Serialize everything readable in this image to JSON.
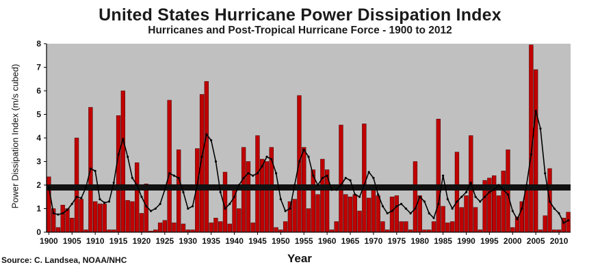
{
  "chart_data": {
    "type": "bar",
    "title": "United States Hurricane Power Dissipation Index",
    "subtitle": "Hurricanes and Post-Tropical Hurricane Force - 1900 to 2012",
    "ylabel": "Power Dissipation Index (m/s cubed)",
    "xlabel": "Year",
    "source": "Source: C. Landsea, NOAA/NHC",
    "ylim": [
      0,
      8
    ],
    "yticks": [
      "0",
      "1",
      "2",
      "3",
      "4",
      "5",
      "6",
      "7",
      "8"
    ],
    "xticks": [
      "1900",
      "1905",
      "1910",
      "1915",
      "1920",
      "1925",
      "1930",
      "1935",
      "1940",
      "1945",
      "1950",
      "1955",
      "1960",
      "1965",
      "1970",
      "1975",
      "1980",
      "1985",
      "1990",
      "1995",
      "2000",
      "2005",
      "2010"
    ],
    "xtick_years": [
      1900,
      1905,
      1910,
      1915,
      1920,
      1925,
      1930,
      1935,
      1940,
      1945,
      1950,
      1955,
      1960,
      1965,
      1970,
      1975,
      1980,
      1985,
      1990,
      1995,
      2000,
      2005,
      2010
    ],
    "grid": false,
    "colors": {
      "bars": "#c00000",
      "bar_edge": "#3a0000",
      "plot_background": "#c0c0c0",
      "smoothed_line": "#000000",
      "mean_line": "#111111"
    },
    "mean_value": 1.9,
    "years": [
      1900,
      1901,
      1902,
      1903,
      1904,
      1905,
      1906,
      1907,
      1908,
      1909,
      1910,
      1911,
      1912,
      1913,
      1914,
      1915,
      1916,
      1917,
      1918,
      1919,
      1920,
      1921,
      1922,
      1923,
      1924,
      1925,
      1926,
      1927,
      1928,
      1929,
      1930,
      1931,
      1932,
      1933,
      1934,
      1935,
      1936,
      1937,
      1938,
      1939,
      1940,
      1941,
      1942,
      1943,
      1944,
      1945,
      1946,
      1947,
      1948,
      1949,
      1950,
      1951,
      1952,
      1953,
      1954,
      1955,
      1956,
      1957,
      1958,
      1959,
      1960,
      1961,
      1962,
      1963,
      1964,
      1965,
      1966,
      1967,
      1968,
      1969,
      1970,
      1971,
      1972,
      1973,
      1974,
      1975,
      1976,
      1977,
      1978,
      1979,
      1980,
      1981,
      1982,
      1983,
      1984,
      1985,
      1986,
      1987,
      1988,
      1989,
      1990,
      1991,
      1992,
      1993,
      1994,
      1995,
      1996,
      1997,
      1998,
      1999,
      2000,
      2001,
      2002,
      2003,
      2004,
      2005,
      2006,
      2007,
      2008,
      2009,
      2010,
      2011,
      2012
    ],
    "series": [
      {
        "name": "",
        "values": [
          2.35,
          1.0,
          0.2,
          1.15,
          1.0,
          0.6,
          4.0,
          1.4,
          0.1,
          5.3,
          1.3,
          1.2,
          1.2,
          0.1,
          0.1,
          4.95,
          6.0,
          1.35,
          1.3,
          2.95,
          0.8,
          2.05,
          0.05,
          0.1,
          0.4,
          0.5,
          5.6,
          0.4,
          3.5,
          0.35,
          0.1,
          0.1,
          3.55,
          5.85,
          6.4,
          0.4,
          0.6,
          0.45,
          2.55,
          0.35,
          1.8,
          1.0,
          3.6,
          3.0,
          0.4,
          4.1,
          3.1,
          3.0,
          3.6,
          0.2,
          0.1,
          0.45,
          1.3,
          1.4,
          5.8,
          3.6,
          1.0,
          2.65,
          1.6,
          3.1,
          2.65,
          0.1,
          0.45,
          4.55,
          1.6,
          1.5,
          1.6,
          0.9,
          4.6,
          1.45,
          2.0,
          1.55,
          0.45,
          0.1,
          1.5,
          1.55,
          0.45,
          0.45,
          0.1,
          3.0,
          1.55,
          0.1,
          0.1,
          0.45,
          4.8,
          1.1,
          0.4,
          0.45,
          3.4,
          1.05,
          1.55,
          4.1,
          1.05,
          0.1,
          2.2,
          2.3,
          2.4,
          1.55,
          2.6,
          3.5,
          0.2,
          0.65,
          1.3,
          1.8,
          7.95,
          6.9,
          0.1,
          0.7,
          2.7,
          0.1,
          0.1,
          0.6,
          0.85
        ]
      },
      {
        "name": "",
        "values": [
          1.9,
          0.8,
          0.75,
          0.8,
          0.95,
          1.2,
          1.5,
          1.45,
          1.9,
          2.7,
          2.6,
          1.4,
          1.25,
          1.3,
          2.1,
          3.3,
          3.95,
          3.2,
          2.3,
          2.0,
          1.5,
          1.1,
          0.9,
          1.0,
          1.2,
          1.8,
          2.5,
          2.4,
          2.3,
          1.7,
          1.0,
          1.1,
          2.0,
          3.2,
          4.15,
          3.9,
          3.0,
          1.7,
          1.0,
          1.2,
          1.5,
          2.0,
          2.3,
          2.5,
          2.4,
          2.5,
          2.8,
          3.2,
          3.1,
          2.5,
          1.4,
          0.9,
          1.0,
          2.0,
          3.0,
          3.5,
          3.2,
          2.4,
          2.0,
          2.3,
          2.4,
          1.8,
          1.8,
          2.0,
          2.3,
          2.2,
          1.6,
          1.5,
          2.0,
          2.55,
          2.3,
          1.6,
          1.1,
          0.8,
          0.9,
          1.1,
          1.2,
          1.0,
          0.8,
          1.0,
          1.5,
          1.3,
          0.8,
          0.6,
          1.2,
          2.4,
          1.4,
          1.0,
          1.3,
          1.5,
          1.7,
          2.1,
          1.5,
          1.3,
          1.5,
          1.7,
          1.8,
          2.0,
          1.8,
          1.6,
          0.9,
          0.55,
          1.0,
          2.0,
          3.3,
          5.15,
          4.4,
          2.5,
          1.3,
          1.0,
          0.8,
          0.4,
          0.5
        ]
      }
    ]
  }
}
